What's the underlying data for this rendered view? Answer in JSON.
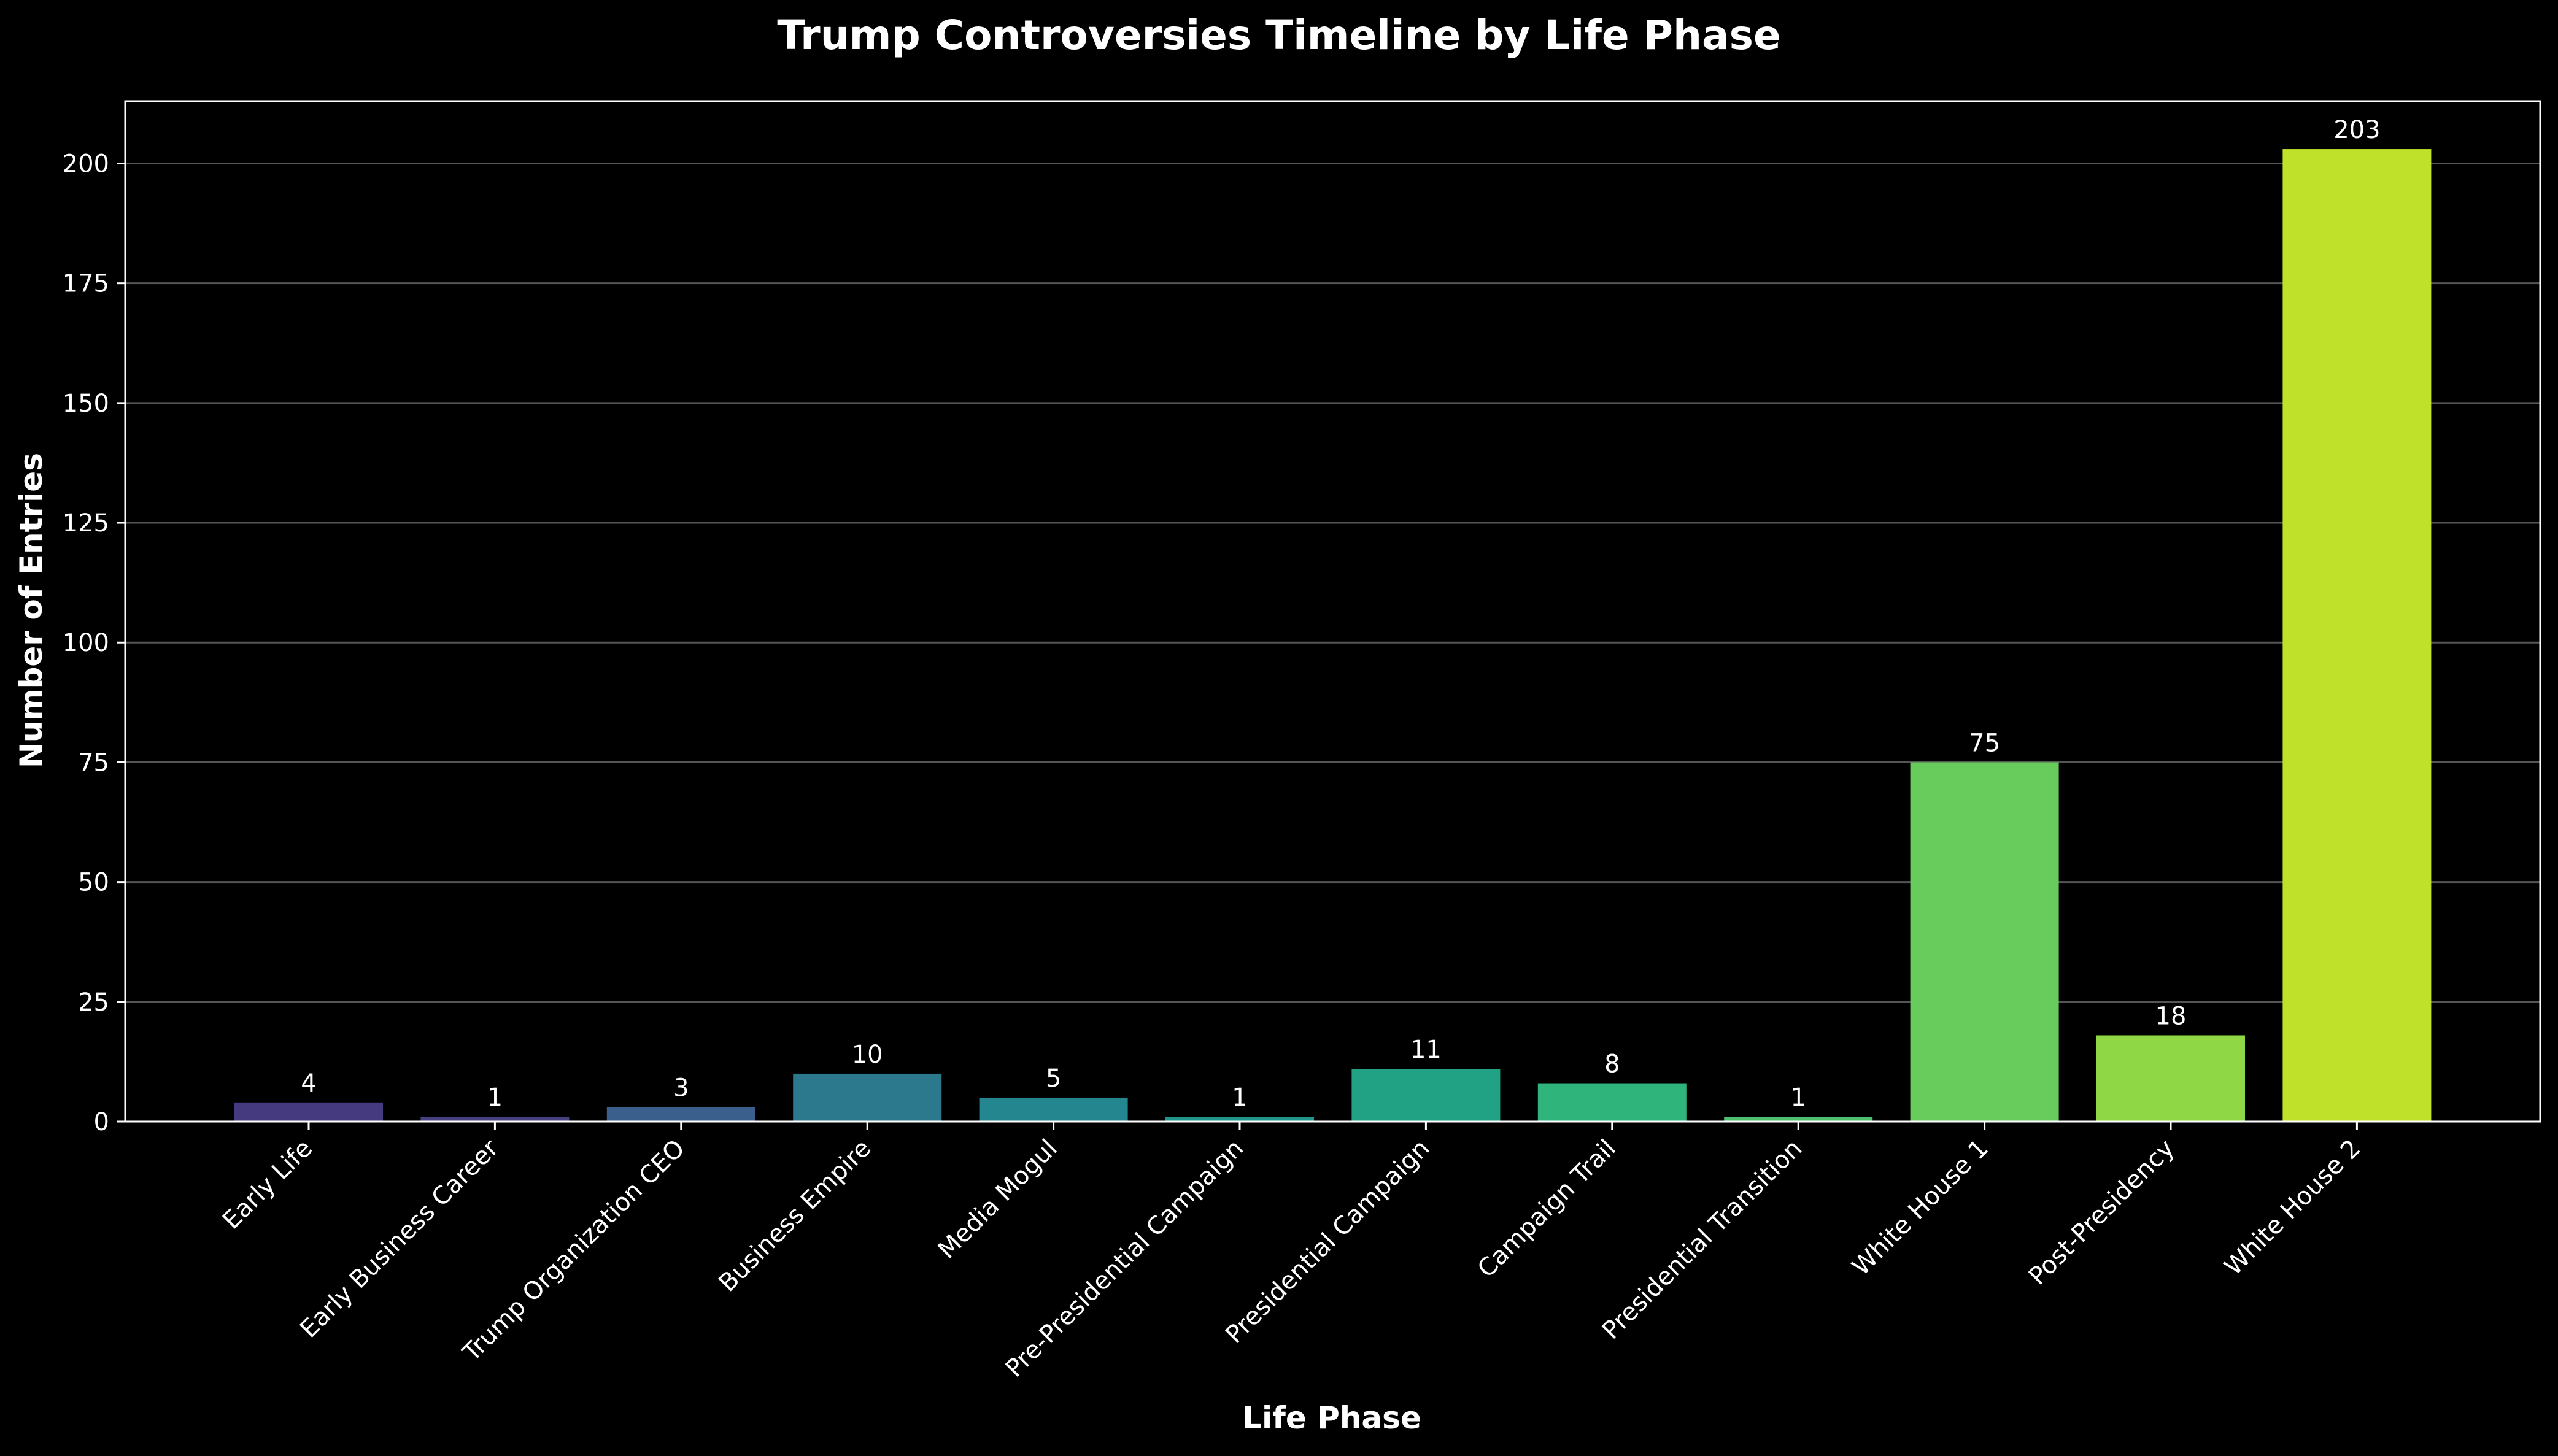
{
  "chart_data": {
    "type": "bar",
    "title": "Trump Controversies Timeline by Life Phase",
    "xlabel": "Life Phase",
    "ylabel": "Number of Entries",
    "categories": [
      "Early Life",
      "Early Business Career",
      "Trump Organization CEO",
      "Business Empire",
      "Media Mogul",
      "Pre-Presidential Campaign",
      "Presidential Campaign",
      "Campaign Trail",
      "Presidential Transition",
      "White House 1",
      "Post-Presidency",
      "White House 2"
    ],
    "values": [
      4,
      1,
      3,
      10,
      5,
      1,
      11,
      8,
      1,
      75,
      18,
      203
    ],
    "colors": [
      "#45397f",
      "#46417f",
      "#3b5f8c",
      "#2c788d",
      "#24868e",
      "#20968b",
      "#22a285",
      "#2fb47c",
      "#4dbf6c",
      "#67cc5c",
      "#8fd744",
      "#c0e12a"
    ],
    "ylim": [
      0,
      213
    ],
    "yticks": [
      0,
      25,
      50,
      75,
      100,
      125,
      150,
      175,
      200
    ],
    "grid": "horizontal",
    "background": "#000000",
    "text_color": "#ffffff",
    "grid_color": "#555555"
  }
}
